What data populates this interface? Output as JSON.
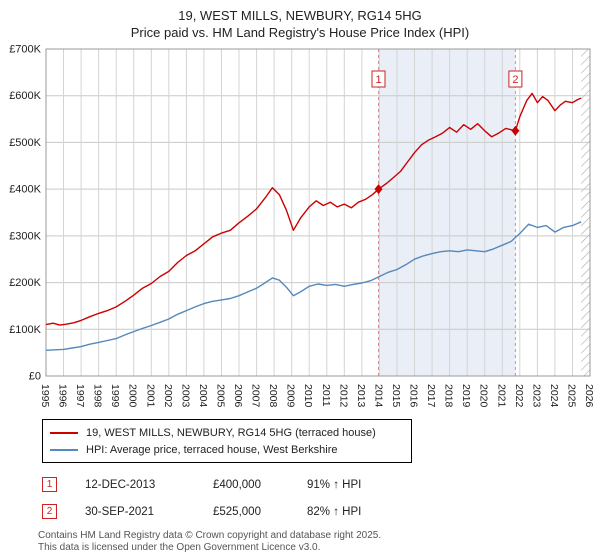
{
  "header": {
    "title": "19, WEST MILLS, NEWBURY, RG14 5HG",
    "subtitle": "Price paid vs. HM Land Registry's House Price Index (HPI)"
  },
  "legend": {
    "series1": "19, WEST MILLS, NEWBURY, RG14 5HG (terraced house)",
    "series2": "HPI: Average price, terraced house, West Berkshire"
  },
  "annotations": [
    {
      "num": "1",
      "date": "12-DEC-2013",
      "price": "£400,000",
      "hpi": "91% ↑ HPI"
    },
    {
      "num": "2",
      "date": "30-SEP-2021",
      "price": "£525,000",
      "hpi": "82% ↑ HPI"
    }
  ],
  "footer": {
    "line1": "Contains HM Land Registry data © Crown copyright and database right 2025.",
    "line2": "This data is licensed under the Open Government Licence v3.0."
  },
  "chart_data": {
    "type": "line",
    "title": "19, WEST MILLS, NEWBURY, RG14 5HG",
    "subtitle": "Price paid vs. HM Land Registry's House Price Index (HPI)",
    "xlabel": "",
    "ylabel": "",
    "grid": true,
    "legend_position": "bottom",
    "xlim": [
      1995,
      2026
    ],
    "ylim": [
      0,
      700000
    ],
    "x_ticks": [
      1995,
      1996,
      1997,
      1998,
      1999,
      2000,
      2001,
      2002,
      2003,
      2004,
      2005,
      2006,
      2007,
      2008,
      2009,
      2010,
      2011,
      2012,
      2013,
      2014,
      2015,
      2016,
      2017,
      2018,
      2019,
      2020,
      2021,
      2022,
      2023,
      2024,
      2025,
      2026
    ],
    "y_ticks": [
      {
        "v": 0,
        "label": "£0"
      },
      {
        "v": 100000,
        "label": "£100K"
      },
      {
        "v": 200000,
        "label": "£200K"
      },
      {
        "v": 300000,
        "label": "£300K"
      },
      {
        "v": 400000,
        "label": "£400K"
      },
      {
        "v": 500000,
        "label": "£500K"
      },
      {
        "v": 600000,
        "label": "£600K"
      },
      {
        "v": 700000,
        "label": "£700K"
      }
    ],
    "shade_region": {
      "from": 2013.95,
      "to": 2021.75,
      "color": "#e9eef7"
    },
    "hatch_region": {
      "from": 2025.5,
      "to": 2026
    },
    "sale_markers": [
      {
        "label": "1",
        "x": 2013.95,
        "y": 400000,
        "date": "12-DEC-2013",
        "price": 400000
      },
      {
        "label": "2",
        "x": 2021.75,
        "y": 525000,
        "date": "30-SEP-2021",
        "price": 525000
      }
    ],
    "series": [
      {
        "name": "19, WEST MILLS, NEWBURY, RG14 5HG (terraced house)",
        "color": "#cc0000",
        "points": [
          [
            1995,
            110000
          ],
          [
            1995.4,
            113000
          ],
          [
            1995.8,
            109000
          ],
          [
            1996.2,
            111000
          ],
          [
            1996.6,
            114000
          ],
          [
            1997,
            119000
          ],
          [
            1997.5,
            127000
          ],
          [
            1998,
            134000
          ],
          [
            1998.5,
            140000
          ],
          [
            1999,
            148000
          ],
          [
            1999.5,
            160000
          ],
          [
            2000,
            173000
          ],
          [
            2000.5,
            188000
          ],
          [
            2001,
            198000
          ],
          [
            2001.5,
            213000
          ],
          [
            2002,
            224000
          ],
          [
            2002.5,
            243000
          ],
          [
            2003,
            258000
          ],
          [
            2003.5,
            268000
          ],
          [
            2004,
            283000
          ],
          [
            2004.5,
            298000
          ],
          [
            2005,
            306000
          ],
          [
            2005.5,
            312000
          ],
          [
            2006,
            328000
          ],
          [
            2006.5,
            342000
          ],
          [
            2007,
            358000
          ],
          [
            2007.5,
            382000
          ],
          [
            2007.9,
            403000
          ],
          [
            2008.3,
            388000
          ],
          [
            2008.7,
            355000
          ],
          [
            2009.1,
            312000
          ],
          [
            2009.5,
            338000
          ],
          [
            2010,
            362000
          ],
          [
            2010.4,
            375000
          ],
          [
            2010.8,
            365000
          ],
          [
            2011.2,
            372000
          ],
          [
            2011.6,
            362000
          ],
          [
            2012,
            368000
          ],
          [
            2012.4,
            360000
          ],
          [
            2012.8,
            372000
          ],
          [
            2013.2,
            378000
          ],
          [
            2013.6,
            388000
          ],
          [
            2013.95,
            400000
          ],
          [
            2014.4,
            412000
          ],
          [
            2014.8,
            425000
          ],
          [
            2015.2,
            438000
          ],
          [
            2015.6,
            458000
          ],
          [
            2016,
            478000
          ],
          [
            2016.4,
            495000
          ],
          [
            2016.8,
            505000
          ],
          [
            2017.2,
            512000
          ],
          [
            2017.6,
            520000
          ],
          [
            2018,
            532000
          ],
          [
            2018.4,
            522000
          ],
          [
            2018.8,
            538000
          ],
          [
            2019.2,
            528000
          ],
          [
            2019.6,
            540000
          ],
          [
            2020,
            525000
          ],
          [
            2020.4,
            512000
          ],
          [
            2020.8,
            520000
          ],
          [
            2021.2,
            530000
          ],
          [
            2021.75,
            525000
          ],
          [
            2022,
            555000
          ],
          [
            2022.4,
            590000
          ],
          [
            2022.7,
            605000
          ],
          [
            2023,
            585000
          ],
          [
            2023.3,
            598000
          ],
          [
            2023.6,
            590000
          ],
          [
            2024,
            568000
          ],
          [
            2024.3,
            580000
          ],
          [
            2024.6,
            588000
          ],
          [
            2025,
            585000
          ],
          [
            2025.3,
            592000
          ],
          [
            2025.5,
            595000
          ]
        ]
      },
      {
        "name": "HPI: Average price, terraced house, West Berkshire",
        "color": "#5588bb",
        "points": [
          [
            1995,
            55000
          ],
          [
            1995.5,
            56000
          ],
          [
            1996,
            57000
          ],
          [
            1996.5,
            60000
          ],
          [
            1997,
            63000
          ],
          [
            1997.5,
            68000
          ],
          [
            1998,
            72000
          ],
          [
            1998.5,
            76000
          ],
          [
            1999,
            80000
          ],
          [
            1999.5,
            88000
          ],
          [
            2000,
            95000
          ],
          [
            2000.5,
            102000
          ],
          [
            2001,
            108000
          ],
          [
            2001.5,
            115000
          ],
          [
            2002,
            122000
          ],
          [
            2002.5,
            132000
          ],
          [
            2003,
            140000
          ],
          [
            2003.5,
            148000
          ],
          [
            2004,
            155000
          ],
          [
            2004.5,
            160000
          ],
          [
            2005,
            163000
          ],
          [
            2005.5,
            166000
          ],
          [
            2006,
            172000
          ],
          [
            2006.5,
            180000
          ],
          [
            2007,
            188000
          ],
          [
            2007.5,
            200000
          ],
          [
            2007.9,
            210000
          ],
          [
            2008.3,
            205000
          ],
          [
            2008.7,
            190000
          ],
          [
            2009.1,
            172000
          ],
          [
            2009.5,
            180000
          ],
          [
            2010,
            192000
          ],
          [
            2010.5,
            197000
          ],
          [
            2011,
            194000
          ],
          [
            2011.5,
            196000
          ],
          [
            2012,
            192000
          ],
          [
            2012.5,
            196000
          ],
          [
            2013,
            199000
          ],
          [
            2013.5,
            204000
          ],
          [
            2014,
            213000
          ],
          [
            2014.5,
            222000
          ],
          [
            2015,
            228000
          ],
          [
            2015.5,
            238000
          ],
          [
            2016,
            250000
          ],
          [
            2016.5,
            257000
          ],
          [
            2017,
            262000
          ],
          [
            2017.5,
            266000
          ],
          [
            2018,
            268000
          ],
          [
            2018.5,
            266000
          ],
          [
            2019,
            270000
          ],
          [
            2019.5,
            268000
          ],
          [
            2020,
            266000
          ],
          [
            2020.5,
            272000
          ],
          [
            2021,
            280000
          ],
          [
            2021.5,
            288000
          ],
          [
            2022,
            305000
          ],
          [
            2022.5,
            325000
          ],
          [
            2023,
            318000
          ],
          [
            2023.5,
            322000
          ],
          [
            2024,
            308000
          ],
          [
            2024.5,
            318000
          ],
          [
            2025,
            322000
          ],
          [
            2025.5,
            330000
          ]
        ]
      }
    ]
  }
}
